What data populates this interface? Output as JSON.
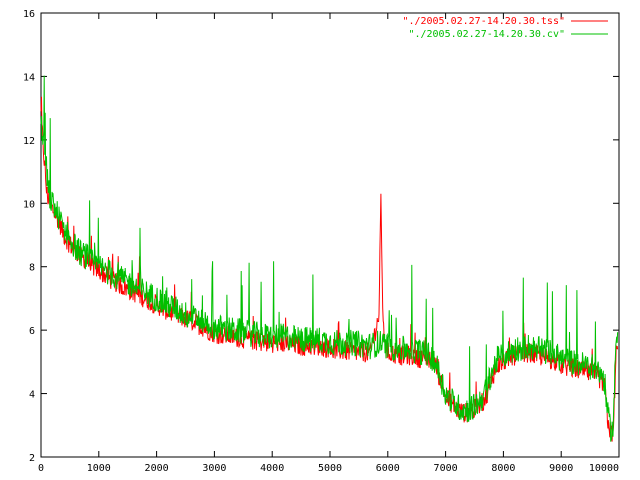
{
  "chart_data": {
    "type": "line",
    "title": "",
    "xlabel": "",
    "ylabel": "",
    "xlim": [
      0,
      10000
    ],
    "ylim": [
      2,
      16
    ],
    "x_ticks": [
      0,
      1000,
      2000,
      3000,
      4000,
      5000,
      6000,
      7000,
      8000,
      9000,
      10000
    ],
    "y_ticks": [
      2,
      4,
      6,
      8,
      10,
      12,
      14,
      16
    ],
    "grid": false,
    "legend_position": "top-right",
    "series": [
      {
        "name": "\"./2005.02.27-14.20.30.tss\"",
        "color": "#ff0000",
        "x": [
          0,
          50,
          100,
          150,
          200,
          300,
          400,
          500,
          600,
          700,
          800,
          900,
          1000,
          1200,
          1400,
          1600,
          1800,
          2000,
          2200,
          2400,
          2600,
          2800,
          3000,
          3300,
          3600,
          3900,
          4200,
          4500,
          4800,
          5100,
          5400,
          5700,
          5850,
          5880,
          5920,
          6000,
          6200,
          6400,
          6600,
          6800,
          6900,
          7000,
          7100,
          7200,
          7300,
          7400,
          7500,
          7600,
          7700,
          7800,
          7900,
          8000,
          8200,
          8400,
          8600,
          8800,
          9000,
          9200,
          9400,
          9600,
          9700,
          9750,
          9800,
          9850,
          9900,
          9950
        ],
        "values": [
          12.8,
          11.5,
          10.3,
          10.0,
          9.8,
          9.5,
          9.0,
          8.7,
          8.5,
          8.3,
          8.2,
          8.0,
          7.9,
          7.6,
          7.4,
          7.2,
          7.0,
          6.8,
          6.6,
          6.4,
          6.3,
          6.1,
          5.9,
          5.8,
          5.7,
          5.6,
          5.6,
          5.5,
          5.5,
          5.4,
          5.3,
          5.3,
          6.5,
          10.2,
          6.0,
          5.3,
          5.2,
          5.2,
          5.1,
          5.0,
          4.5,
          3.9,
          3.7,
          3.5,
          3.4,
          3.4,
          3.5,
          3.6,
          3.9,
          4.5,
          4.9,
          5.0,
          5.2,
          5.3,
          5.2,
          5.1,
          4.9,
          4.8,
          4.7,
          4.6,
          4.4,
          4.2,
          3.2,
          2.8,
          2.7,
          5.3
        ]
      },
      {
        "name": "\"./2005.02.27-14.20.30.cv\"",
        "color": "#00c000",
        "x": [
          0,
          50,
          100,
          150,
          200,
          300,
          400,
          500,
          600,
          700,
          800,
          900,
          1000,
          1200,
          1400,
          1600,
          1800,
          2000,
          2200,
          2400,
          2600,
          2800,
          3000,
          3300,
          3600,
          3900,
          4200,
          4500,
          4800,
          5100,
          5400,
          5700,
          5850,
          6000,
          6200,
          6400,
          6600,
          6800,
          6900,
          7000,
          7100,
          7200,
          7300,
          7400,
          7500,
          7600,
          7700,
          7800,
          7900,
          8000,
          8200,
          8400,
          8600,
          8800,
          9000,
          9200,
          9400,
          9600,
          9700,
          9750,
          9800,
          9850,
          9900,
          9950
        ],
        "values": [
          12.5,
          12.0,
          11.0,
          10.2,
          10.0,
          9.6,
          9.2,
          8.9,
          8.6,
          8.4,
          8.3,
          8.1,
          8.0,
          7.8,
          7.6,
          7.4,
          7.2,
          7.0,
          6.8,
          6.6,
          6.4,
          6.3,
          6.1,
          6.0,
          5.9,
          5.8,
          5.8,
          5.7,
          5.7,
          5.6,
          5.6,
          5.5,
          5.6,
          5.5,
          5.4,
          5.4,
          5.3,
          5.1,
          4.6,
          4.0,
          3.8,
          3.6,
          3.5,
          3.5,
          3.6,
          3.8,
          4.1,
          4.7,
          5.1,
          5.2,
          5.4,
          5.5,
          5.4,
          5.3,
          5.1,
          5.0,
          4.9,
          4.8,
          4.6,
          4.4,
          3.4,
          2.9,
          2.9,
          5.8
        ]
      }
    ]
  }
}
